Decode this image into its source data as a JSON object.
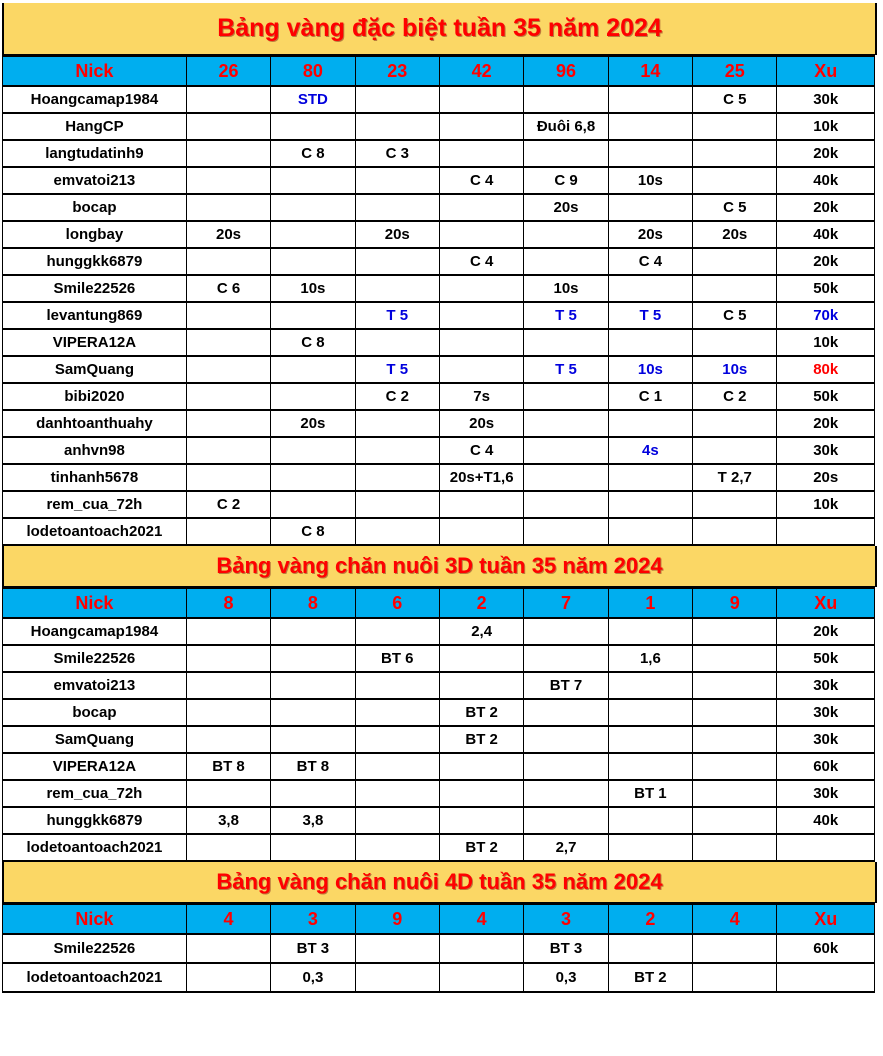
{
  "colors": {
    "banner": "#FBD765",
    "header_bg": "#00AEEF",
    "title": "#FF0000",
    "header_text": "#FF0000",
    "cell_text": "#000000",
    "blue": "#0000DD",
    "red": "#FF0000",
    "border": "#000000",
    "page_bg": "#FFFFFF"
  },
  "tables": [
    {
      "title": "Bảng vàng đặc biệt tuần 35 năm 2024",
      "columns": [
        "Nick",
        "26",
        "80",
        "23",
        "42",
        "96",
        "14",
        "25",
        "Xu"
      ],
      "rows": [
        [
          "Hoangcamap1984",
          "",
          "STD",
          "",
          "",
          "",
          "",
          "C 5",
          "30k"
        ],
        [
          "HangCP",
          "",
          "",
          "",
          "",
          "Đuôi 6,8",
          "",
          "",
          "10k"
        ],
        [
          "langtudatinh9",
          "",
          "C 8",
          "C 3",
          "",
          "",
          "",
          "",
          "20k"
        ],
        [
          "emvatoi213",
          "",
          "",
          "",
          "C 4",
          "C 9",
          "10s",
          "",
          "40k"
        ],
        [
          "bocap",
          "",
          "",
          "",
          "",
          "20s",
          "",
          "C 5",
          "20k"
        ],
        [
          "longbay",
          "20s",
          "",
          "20s",
          "",
          "",
          "20s",
          "20s",
          "40k"
        ],
        [
          "hunggkk6879",
          "",
          "",
          "",
          "C 4",
          "",
          "C 4",
          "",
          "20k"
        ],
        [
          "Smile22526",
          "C 6",
          "10s",
          "",
          "",
          "10s",
          "",
          "",
          "50k"
        ],
        [
          "levantung869",
          "",
          "",
          "T 5",
          "",
          "T 5",
          "T 5",
          "C 5",
          "70k"
        ],
        [
          "VIPERA12A",
          "",
          "C 8",
          "",
          "",
          "",
          "",
          "",
          "10k"
        ],
        [
          "SamQuang",
          "",
          "",
          "T 5",
          "",
          "T 5",
          "10s",
          "10s",
          "80k"
        ],
        [
          "bibi2020",
          "",
          "",
          "C 2",
          "7s",
          "",
          "C 1",
          "C 2",
          "50k"
        ],
        [
          "danhtoanthuahy",
          "",
          "20s",
          "",
          "20s",
          "",
          "",
          "",
          "20k"
        ],
        [
          "anhvn98",
          "",
          "",
          "",
          "C 4",
          "",
          "4s",
          "",
          "30k"
        ],
        [
          "tinhanh5678",
          "",
          "",
          "",
          "20s+T1,6",
          "",
          "",
          "T 2,7",
          "20s"
        ],
        [
          "rem_cua_72h",
          "C 2",
          "",
          "",
          "",
          "",
          "",
          "",
          "10k"
        ],
        [
          "lodetoantoach2021",
          "",
          "C 8",
          "",
          "",
          "",
          "",
          "",
          ""
        ]
      ],
      "highlights": [
        [
          0,
          2,
          "blue"
        ],
        [
          8,
          3,
          "blue"
        ],
        [
          8,
          5,
          "blue"
        ],
        [
          8,
          6,
          "blue"
        ],
        [
          8,
          8,
          "blue"
        ],
        [
          10,
          3,
          "blue"
        ],
        [
          10,
          5,
          "blue"
        ],
        [
          10,
          6,
          "blue"
        ],
        [
          10,
          7,
          "blue"
        ],
        [
          10,
          8,
          "red"
        ],
        [
          13,
          6,
          "blue"
        ]
      ]
    },
    {
      "title": "Bảng vàng chăn nuôi 3D tuần 35 năm 2024",
      "columns": [
        "Nick",
        "8",
        "8",
        "6",
        "2",
        "7",
        "1",
        "9",
        "Xu"
      ],
      "rows": [
        [
          "Hoangcamap1984",
          "",
          "",
          "",
          "2,4",
          "",
          "",
          "",
          "20k"
        ],
        [
          "Smile22526",
          "",
          "",
          "BT 6",
          "",
          "",
          "1,6",
          "",
          "50k"
        ],
        [
          "emvatoi213",
          "",
          "",
          "",
          "",
          "BT 7",
          "",
          "",
          "30k"
        ],
        [
          "bocap",
          "",
          "",
          "",
          "BT 2",
          "",
          "",
          "",
          "30k"
        ],
        [
          "SamQuang",
          "",
          "",
          "",
          "BT 2",
          "",
          "",
          "",
          "30k"
        ],
        [
          "VIPERA12A",
          "BT 8",
          "BT 8",
          "",
          "",
          "",
          "",
          "",
          "60k"
        ],
        [
          "rem_cua_72h",
          "",
          "",
          "",
          "",
          "",
          "BT 1",
          "",
          "30k"
        ],
        [
          "hunggkk6879",
          "3,8",
          "3,8",
          "",
          "",
          "",
          "",
          "",
          "40k"
        ],
        [
          "lodetoantoach2021",
          "",
          "",
          "",
          "BT 2",
          "2,7",
          "",
          "",
          ""
        ]
      ],
      "highlights": []
    },
    {
      "title": "Bảng vàng chăn nuôi 4D tuần 35 năm 2024",
      "columns": [
        "Nick",
        "4",
        "3",
        "9",
        "4",
        "3",
        "2",
        "4",
        "Xu"
      ],
      "rows": [
        [
          "Smile22526",
          "",
          "BT 3",
          "",
          "",
          "BT 3",
          "",
          "",
          "60k"
        ],
        [
          "lodetoantoach2021",
          "",
          "0,3",
          "",
          "",
          "0,3",
          "BT 2",
          "",
          ""
        ]
      ],
      "highlights": []
    }
  ]
}
